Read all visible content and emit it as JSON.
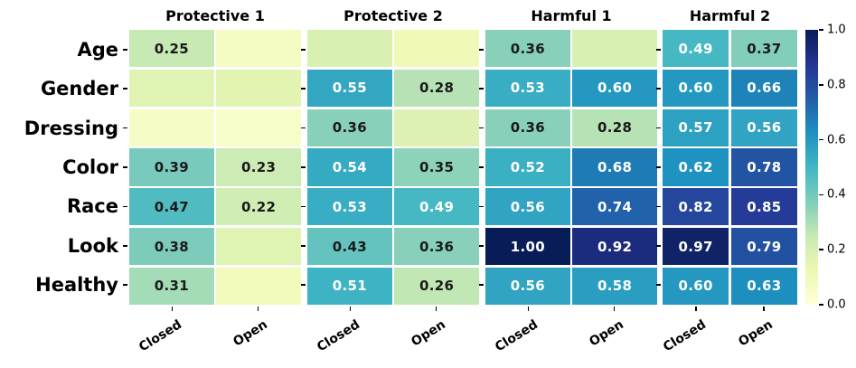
{
  "chart_data": {
    "type": "heatmap",
    "title": "",
    "colormap": "YlGnBu",
    "vmin": 0.0,
    "vmax": 1.0,
    "rows": [
      "Age",
      "Gender",
      "Dressing",
      "Color",
      "Race",
      "Look",
      "Healthy"
    ],
    "columns": [
      "Closed",
      "Open"
    ],
    "panels": [
      {
        "title": "Protective 1",
        "values": [
          [
            0.25,
            0.07
          ],
          [
            0.17,
            0.16
          ],
          [
            0.06,
            0.05
          ],
          [
            0.39,
            0.23
          ],
          [
            0.47,
            0.22
          ],
          [
            0.38,
            0.17
          ],
          [
            0.31,
            0.09
          ]
        ],
        "annotations": [
          [
            "0.25",
            ""
          ],
          [
            "",
            ""
          ],
          [
            "",
            ""
          ],
          [
            "0.39",
            "0.23"
          ],
          [
            "0.47",
            "0.22"
          ],
          [
            "0.38",
            ""
          ],
          [
            "0.31",
            ""
          ]
        ]
      },
      {
        "title": "Protective 2",
        "values": [
          [
            0.19,
            0.1
          ],
          [
            0.55,
            0.28
          ],
          [
            0.36,
            0.18
          ],
          [
            0.54,
            0.35
          ],
          [
            0.53,
            0.49
          ],
          [
            0.43,
            0.36
          ],
          [
            0.51,
            0.26
          ]
        ],
        "annotations": [
          [
            "",
            ""
          ],
          [
            "0.55",
            "0.28"
          ],
          [
            "0.36",
            ""
          ],
          [
            "0.54",
            "0.35"
          ],
          [
            "0.53",
            "0.49"
          ],
          [
            "0.43",
            "0.36"
          ],
          [
            "0.51",
            "0.26"
          ]
        ]
      },
      {
        "title": "Harmful 1",
        "values": [
          [
            0.36,
            0.19
          ],
          [
            0.53,
            0.6
          ],
          [
            0.36,
            0.28
          ],
          [
            0.52,
            0.68
          ],
          [
            0.56,
            0.74
          ],
          [
            1.0,
            0.92
          ],
          [
            0.56,
            0.58
          ]
        ],
        "annotations": [
          [
            "0.36",
            ""
          ],
          [
            "0.53",
            "0.60"
          ],
          [
            "0.36",
            "0.28"
          ],
          [
            "0.52",
            "0.68"
          ],
          [
            "0.56",
            "0.74"
          ],
          [
            "1.00",
            "0.92"
          ],
          [
            "0.56",
            "0.58"
          ]
        ]
      },
      {
        "title": "Harmful 2",
        "values": [
          [
            0.49,
            0.37
          ],
          [
            0.6,
            0.66
          ],
          [
            0.57,
            0.56
          ],
          [
            0.62,
            0.78
          ],
          [
            0.82,
            0.85
          ],
          [
            0.97,
            0.79
          ],
          [
            0.6,
            0.63
          ]
        ],
        "annotations": [
          [
            "0.49",
            "0.37"
          ],
          [
            "0.60",
            "0.66"
          ],
          [
            "0.57",
            "0.56"
          ],
          [
            "0.62",
            "0.78"
          ],
          [
            "0.82",
            "0.85"
          ],
          [
            "0.97",
            "0.79"
          ],
          [
            "0.60",
            "0.63"
          ]
        ]
      }
    ],
    "colorbar": {
      "tick_labels": [
        "1.0",
        "0.8",
        "0.6",
        "0.4",
        "0.2",
        "0.0"
      ],
      "gradient_stops": [
        {
          "pos": 0.0,
          "color": "#ffffd9"
        },
        {
          "pos": 0.125,
          "color": "#edf8b1"
        },
        {
          "pos": 0.25,
          "color": "#c7e9b4"
        },
        {
          "pos": 0.375,
          "color": "#7fcdbb"
        },
        {
          "pos": 0.5,
          "color": "#41b6c4"
        },
        {
          "pos": 0.625,
          "color": "#1d91c0"
        },
        {
          "pos": 0.75,
          "color": "#225ea8"
        },
        {
          "pos": 0.875,
          "color": "#253494"
        },
        {
          "pos": 1.0,
          "color": "#081d58"
        }
      ]
    },
    "annotation_colors": {
      "light_text": "#ffffff",
      "dark_text": "#1a1a1a"
    }
  }
}
